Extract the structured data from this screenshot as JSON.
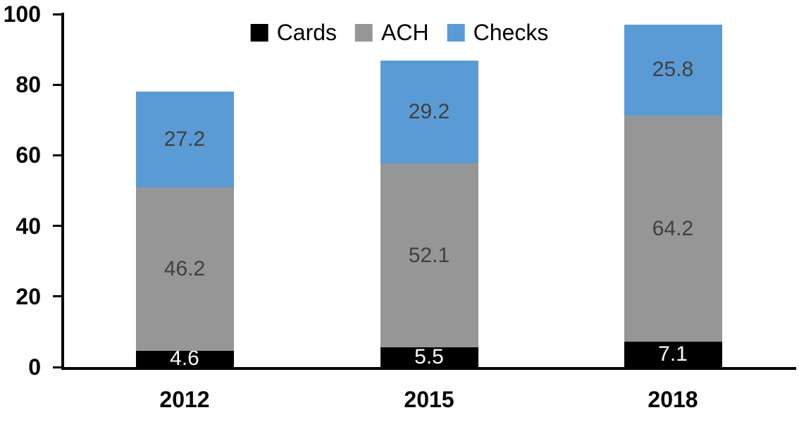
{
  "chart_data": {
    "type": "bar",
    "stacked": true,
    "title": "",
    "categories": [
      "2012",
      "2015",
      "2018"
    ],
    "series": [
      {
        "name": "Cards",
        "values": [
          4.6,
          5.5,
          7.1
        ],
        "color": "#000000",
        "label_color": "#ffffff"
      },
      {
        "name": "ACH",
        "values": [
          46.2,
          52.1,
          64.2
        ],
        "color": "#969696",
        "label_color": "#3f3f3f"
      },
      {
        "name": "Checks",
        "values": [
          27.2,
          29.2,
          25.8
        ],
        "color": "#5b9bd5",
        "label_color": "#3f3f3f"
      }
    ],
    "totals": [
      78.0,
      86.8,
      97.1
    ],
    "xlabel": "",
    "ylabel": "",
    "ylim": [
      0,
      100
    ],
    "yticks": [
      0,
      20,
      40,
      60,
      80,
      100
    ],
    "grid": false,
    "legend_position": "top-center",
    "data_labels": true,
    "axis_color": "#000000"
  }
}
